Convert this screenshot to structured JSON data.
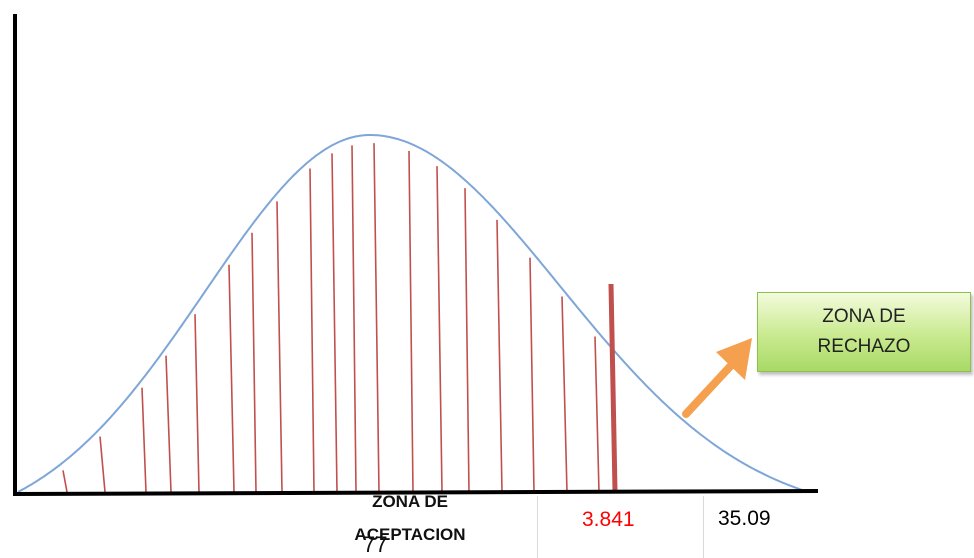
{
  "labels": {
    "rejection_line1": "ZONA DE",
    "rejection_line2": "RECHAZO",
    "acceptance_line1": "ZONA DE",
    "acceptance_line2": "ACEPTACION",
    "critical_value": "3.841",
    "computed_value": "35.09",
    "page_number": "77"
  },
  "colors": {
    "curve": "#7ea6d8",
    "hatch": "#c0504d",
    "axis": "#000000",
    "critical_value": "#ff0000",
    "arrow": "#f4a04e"
  }
}
